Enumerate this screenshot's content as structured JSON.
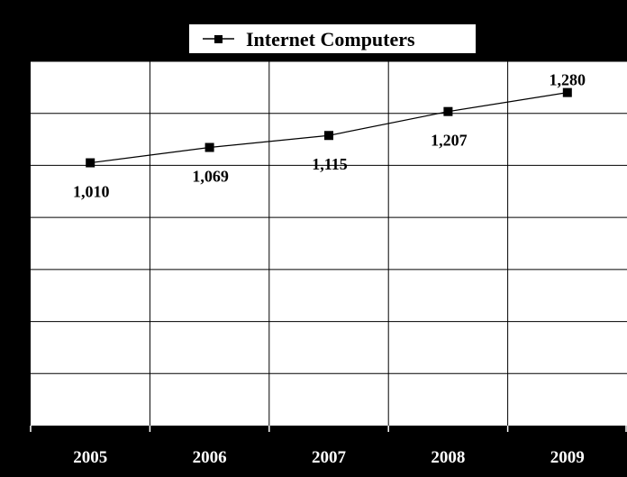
{
  "colors": {
    "background": "#000000",
    "plot_area": "#ffffff",
    "gridline": "#000000",
    "series_line": "#000000",
    "axis_text": "#ffffff",
    "label_text": "#000000"
  },
  "chart_data": {
    "type": "line",
    "title": "",
    "xlabel": "",
    "ylabel": "",
    "categories": [
      "2005",
      "2006",
      "2007",
      "2008",
      "2009"
    ],
    "series": [
      {
        "name": "Internet Computers",
        "marker": "square",
        "values": [
          1010,
          1069,
          1115,
          1207,
          1280
        ],
        "labels": [
          "1,010",
          "1,069",
          "1,115",
          "1,207",
          "1,280"
        ]
      }
    ],
    "ylim": [
      0,
      1400
    ],
    "y_grid_step": 200,
    "grid": true,
    "legend": "top-center"
  }
}
